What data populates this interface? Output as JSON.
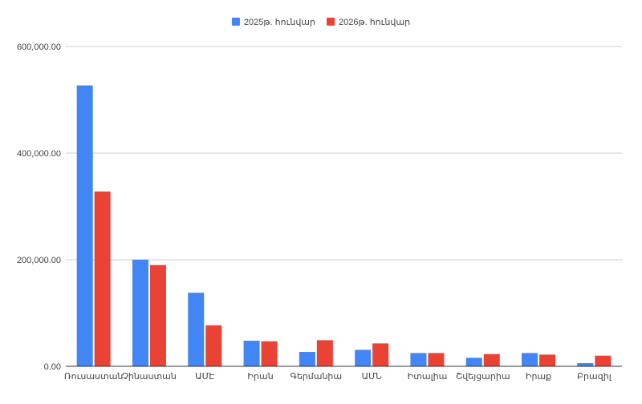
{
  "chart_data": {
    "type": "bar",
    "categories": [
      "Ռուսաստան",
      "Չինաստան",
      "ԱՄԷ",
      "Իրան",
      "Գերմանիա",
      "ԱՄՆ",
      "Իտալիա",
      "Շվեյցարիա",
      "Իրաք",
      "Բրազիլ"
    ],
    "series": [
      {
        "name": "2025թ. հունվար",
        "color": "#4285F4",
        "values": [
          527000,
          200000,
          138000,
          48000,
          27000,
          31000,
          25000,
          16000,
          25000,
          6000
        ]
      },
      {
        "name": "2026թ. հունվար",
        "color": "#EA4335",
        "values": [
          328000,
          190000,
          77000,
          47000,
          49000,
          43000,
          25000,
          23000,
          22000,
          20000
        ]
      }
    ],
    "title": "",
    "xlabel": "",
    "ylabel": "",
    "ylim": [
      0,
      600000
    ],
    "yticks": [
      0,
      200000,
      400000,
      600000
    ],
    "ytick_labels": [
      "0.00",
      "200,000.00",
      "400,000.00",
      "600,000.00"
    ],
    "grid": true,
    "legend_position": "top-center"
  }
}
